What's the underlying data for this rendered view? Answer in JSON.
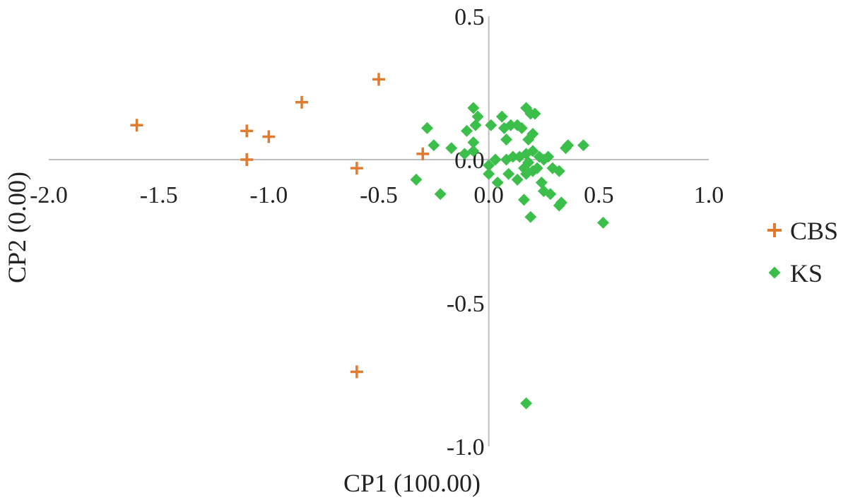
{
  "chart_data": {
    "type": "scatter",
    "title": "",
    "xlabel": "CP1 (100.00)",
    "ylabel": "CP2 (0.00)",
    "xlim": [
      -2.0,
      1.0
    ],
    "ylim": [
      -1.0,
      0.5
    ],
    "x_ticks": [
      "-2.0",
      "-1.5",
      "-1.0",
      "-0.5",
      "0.0",
      "0.5",
      "1.0"
    ],
    "y_ticks": [
      "0.5",
      "0.0",
      "-0.5",
      "-1.0"
    ],
    "x_tick_values": [
      -2.0,
      -1.5,
      -1.0,
      -0.5,
      0.0,
      0.5,
      1.0
    ],
    "y_tick_values": [
      0.5,
      0.0,
      -0.5,
      -1.0
    ],
    "grid": false,
    "legend_position": "right",
    "series": [
      {
        "name": "CBS",
        "marker": "plus",
        "color": "#e07a2e",
        "points": [
          [
            -1.6,
            0.12
          ],
          [
            -1.1,
            0.1
          ],
          [
            -1.0,
            0.08
          ],
          [
            -0.85,
            0.2
          ],
          [
            -0.5,
            0.28
          ],
          [
            -1.1,
            0.0
          ],
          [
            -0.6,
            -0.03
          ],
          [
            -0.3,
            0.02
          ],
          [
            -0.6,
            -0.74
          ]
        ]
      },
      {
        "name": "KS",
        "marker": "diamond",
        "color": "#3cbf4a",
        "points": [
          [
            -0.07,
            0.18
          ],
          [
            -0.05,
            0.15
          ],
          [
            -0.06,
            0.12
          ],
          [
            -0.1,
            0.1
          ],
          [
            -0.07,
            0.06
          ],
          [
            0.01,
            0.12
          ],
          [
            0.06,
            0.15
          ],
          [
            0.07,
            0.11
          ],
          [
            0.1,
            0.12
          ],
          [
            0.13,
            0.12
          ],
          [
            0.15,
            0.11
          ],
          [
            0.17,
            0.18
          ],
          [
            0.19,
            0.16
          ],
          [
            0.21,
            0.16
          ],
          [
            0.2,
            0.09
          ],
          [
            0.18,
            0.07
          ],
          [
            0.08,
            0.07
          ],
          [
            -0.28,
            0.11
          ],
          [
            -0.25,
            0.05
          ],
          [
            -0.17,
            0.04
          ],
          [
            -0.11,
            0.02
          ],
          [
            -0.07,
            0.03
          ],
          [
            0.03,
            0.0
          ],
          [
            0.08,
            0.0
          ],
          [
            0.11,
            0.01
          ],
          [
            0.14,
            0.01
          ],
          [
            0.17,
            0.02
          ],
          [
            0.2,
            0.03
          ],
          [
            0.23,
            0.01
          ],
          [
            0.25,
            0.0
          ],
          [
            0.18,
            -0.01
          ],
          [
            0.16,
            -0.03
          ],
          [
            0.2,
            -0.04
          ],
          [
            0.22,
            -0.03
          ],
          [
            0.27,
            0.01
          ],
          [
            0.29,
            -0.03
          ],
          [
            0.32,
            -0.04
          ],
          [
            0.35,
            0.04
          ],
          [
            0.36,
            0.05
          ],
          [
            0.43,
            0.05
          ],
          [
            0.0,
            -0.02
          ],
          [
            0.0,
            -0.05
          ],
          [
            0.04,
            -0.08
          ],
          [
            0.09,
            -0.05
          ],
          [
            0.13,
            -0.07
          ],
          [
            0.17,
            -0.05
          ],
          [
            0.24,
            -0.08
          ],
          [
            0.25,
            -0.11
          ],
          [
            0.28,
            -0.12
          ],
          [
            0.32,
            -0.16
          ],
          [
            0.33,
            -0.15
          ],
          [
            0.16,
            -0.14
          ],
          [
            0.19,
            -0.2
          ],
          [
            -0.22,
            -0.12
          ],
          [
            -0.33,
            -0.07
          ],
          [
            0.52,
            -0.22
          ],
          [
            0.17,
            -0.85
          ]
        ]
      }
    ]
  }
}
